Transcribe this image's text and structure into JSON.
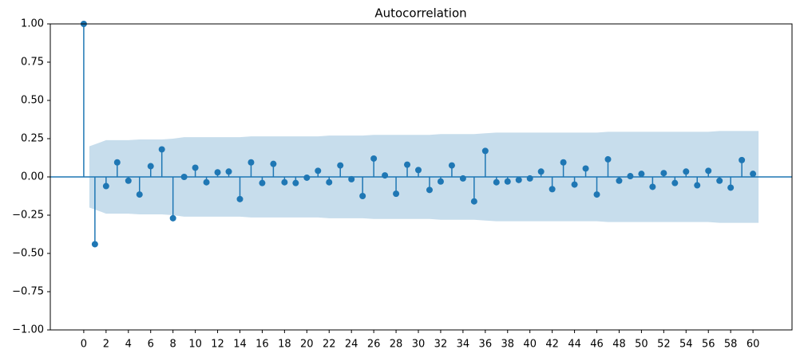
{
  "chart_data": {
    "type": "stem",
    "title": "Autocorrelation",
    "x": [
      0,
      1,
      2,
      3,
      4,
      5,
      6,
      7,
      8,
      9,
      10,
      11,
      12,
      13,
      14,
      15,
      16,
      17,
      18,
      19,
      20,
      21,
      22,
      23,
      24,
      25,
      26,
      27,
      28,
      29,
      30,
      31,
      32,
      33,
      34,
      35,
      36,
      37,
      38,
      39,
      40,
      41,
      42,
      43,
      44,
      45,
      46,
      47,
      48,
      49,
      50,
      51,
      52,
      53,
      54,
      55,
      56,
      57,
      58,
      59,
      60
    ],
    "values": [
      1.0,
      -0.44,
      -0.06,
      0.095,
      -0.025,
      -0.115,
      0.07,
      0.18,
      -0.27,
      0.0,
      0.06,
      -0.035,
      0.03,
      0.035,
      -0.145,
      0.095,
      -0.04,
      0.085,
      -0.035,
      -0.04,
      -0.005,
      0.04,
      -0.035,
      0.075,
      -0.015,
      -0.125,
      0.12,
      0.01,
      -0.11,
      0.08,
      0.045,
      -0.085,
      -0.03,
      0.075,
      -0.01,
      -0.16,
      0.17,
      -0.035,
      -0.03,
      -0.02,
      -0.01,
      0.035,
      -0.08,
      0.095,
      -0.05,
      0.055,
      -0.115,
      0.115,
      -0.025,
      0.005,
      0.02,
      -0.065,
      0.025,
      -0.04,
      0.035,
      -0.055,
      0.04,
      -0.025,
      -0.07,
      0.11,
      0.02
    ],
    "confidence_band": [
      0.2,
      0.24,
      0.24,
      0.24,
      0.245,
      0.245,
      0.245,
      0.25,
      0.26,
      0.26,
      0.26,
      0.26,
      0.26,
      0.26,
      0.265,
      0.265,
      0.265,
      0.265,
      0.265,
      0.265,
      0.265,
      0.27,
      0.27,
      0.27,
      0.27,
      0.275,
      0.275,
      0.275,
      0.275,
      0.275,
      0.275,
      0.28,
      0.28,
      0.28,
      0.28,
      0.285,
      0.29,
      0.29,
      0.29,
      0.29,
      0.29,
      0.29,
      0.29,
      0.29,
      0.29,
      0.29,
      0.295,
      0.295,
      0.295,
      0.295,
      0.295,
      0.295,
      0.295,
      0.295,
      0.295,
      0.295,
      0.3,
      0.3,
      0.3,
      0.3
    ],
    "color": "#1f77b4",
    "band_color": "rgba(31,119,180,0.25)",
    "xlim": [
      -3,
      63.5
    ],
    "ylim": [
      -1,
      1
    ],
    "xticks": [
      0,
      2,
      4,
      6,
      8,
      10,
      12,
      14,
      16,
      18,
      20,
      22,
      24,
      26,
      28,
      30,
      32,
      34,
      36,
      38,
      40,
      42,
      44,
      46,
      48,
      50,
      52,
      54,
      56,
      58,
      60
    ],
    "yticks": [
      {
        "value": -1,
        "label": "−1.00"
      },
      {
        "value": -0.75,
        "label": "−0.75"
      },
      {
        "value": -0.5,
        "label": "−0.50"
      },
      {
        "value": -0.25,
        "label": "−0.25"
      },
      {
        "value": 0,
        "label": "0.00"
      },
      {
        "value": 0.25,
        "label": "0.25"
      },
      {
        "value": 0.5,
        "label": "0.50"
      },
      {
        "value": 0.75,
        "label": "0.75"
      },
      {
        "value": 1,
        "label": "1.00"
      }
    ]
  }
}
